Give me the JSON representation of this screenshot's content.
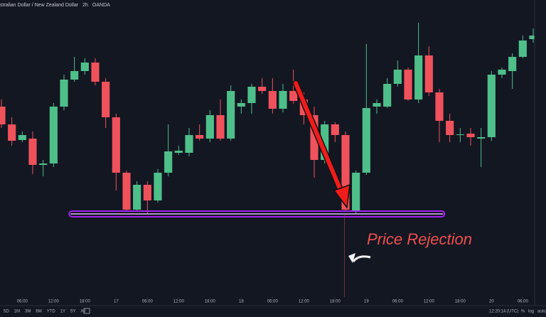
{
  "chart_data": {
    "type": "candlestick",
    "header": {
      "symbol": "stralian Dollar / New Zealand Dollar",
      "interval": "2h",
      "source": "OANDA"
    },
    "up_color": "#4fbf8a",
    "down_color": "#f0525c",
    "open": [
      270,
      245,
      223,
      225,
      188,
      190,
      270,
      308,
      320,
      332,
      305,
      255,
      177,
      125,
      160,
      138,
      177,
      205,
      205,
      230,
      225,
      258,
      225,
      270,
      275,
      298,
      292,
      267,
      292,
      280,
      258,
      195,
      245,
      230,
      122,
      177,
      270,
      270,
      302,
      322,
      280,
      342,
      290,
      250,
      230,
      232,
      225,
      227,
      315,
      320,
      340,
      365
    ],
    "high": [
      280,
      255,
      235,
      235,
      195,
      275,
      315,
      340,
      338,
      338,
      310,
      260,
      180,
      165,
      165,
      182,
      245,
      215,
      240,
      245,
      265,
      280,
      300,
      280,
      302,
      310,
      310,
      302,
      322,
      290,
      270,
      250,
      248,
      235,
      180,
      358,
      280,
      310,
      335,
      325,
      388,
      355,
      295,
      260,
      240,
      240,
      240,
      320,
      325,
      345,
      370,
      380
    ],
    "low": [
      240,
      215,
      220,
      175,
      172,
      185,
      265,
      305,
      315,
      300,
      240,
      152,
      122,
      122,
      120,
      135,
      172,
      202,
      200,
      222,
      220,
      222,
      222,
      260,
      260,
      288,
      260,
      262,
      274,
      245,
      170,
      190,
      220,
      122,
      120,
      174,
      260,
      268,
      298,
      278,
      275,
      285,
      220,
      220,
      220,
      215,
      185,
      222,
      310,
      295,
      338,
      360
    ],
    "close": [
      245,
      222,
      230,
      188,
      190,
      270,
      308,
      320,
      332,
      305,
      255,
      177,
      125,
      160,
      138,
      177,
      207,
      208,
      230,
      225,
      258,
      225,
      292,
      275,
      298,
      292,
      267,
      292,
      278,
      258,
      195,
      245,
      230,
      125,
      177,
      268,
      275,
      302,
      322,
      280,
      342,
      290,
      250,
      230,
      231,
      227,
      227,
      315,
      322,
      340,
      363,
      370
    ],
    "xlim": [
      0,
      51
    ],
    "ylim": [
      0,
      420
    ],
    "xticks": [
      {
        "value": 2,
        "label": "06:00"
      },
      {
        "value": 5,
        "label": "12:00"
      },
      {
        "value": 8,
        "label": "18:00"
      },
      {
        "value": 11,
        "label": "17"
      },
      {
        "value": 14,
        "label": "06:00"
      },
      {
        "value": 17,
        "label": "12:00"
      },
      {
        "value": 20,
        "label": "18:00"
      },
      {
        "value": 23,
        "label": "18"
      },
      {
        "value": 26,
        "label": "06:00"
      },
      {
        "value": 29,
        "label": "12:00"
      },
      {
        "value": 32,
        "label": "18:00"
      },
      {
        "value": 35,
        "label": "19"
      },
      {
        "value": 38,
        "label": "06:00"
      },
      {
        "value": 41,
        "label": "12:00"
      },
      {
        "value": 44,
        "label": "18:00"
      },
      {
        "value": 47,
        "label": "20"
      },
      {
        "value": 50,
        "label": "06:00"
      }
    ],
    "support": {
      "value": 119,
      "from": 6.5,
      "to": 42.5,
      "color": "#a321f2"
    },
    "annotation": "Price Rejection",
    "toolbar": {
      "ranges": [
        "5D",
        "1M",
        "3M",
        "6M",
        "YTD",
        "1Y",
        "5Y",
        "All"
      ],
      "clock": "12:20:14 (UTC)",
      "percent": "%",
      "log": "log",
      "auto": "auto"
    }
  }
}
